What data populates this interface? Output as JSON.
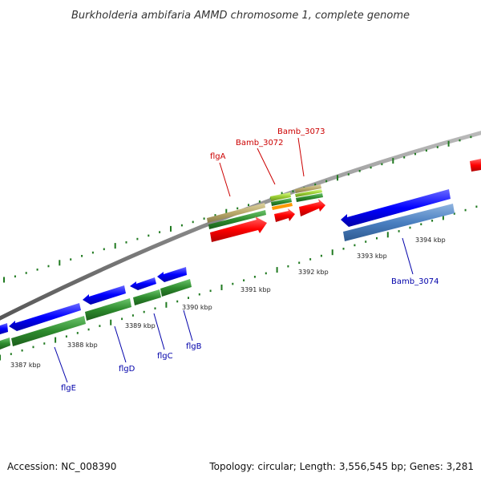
{
  "title": "Burkholderia ambifaria AMMD chromosome 1, complete genome",
  "footer": {
    "accession": "Accession: NC_008390",
    "summary": "Topology: circular; Length: 3,556,545 bp; Genes: 3,281"
  },
  "colors": {
    "backbone": "#888888",
    "tick": "#207a20",
    "forward_label": "#cc0000",
    "reverse_label": "#0000aa",
    "axis_label": "#222222",
    "cds_forward": "#ff0000",
    "cds_reverse": "#0000ff",
    "rrna_like": "#4a7fc1",
    "gene_reverse": "#2e8b2e",
    "gene_forward": "#b8a86a",
    "misc_green": "#99cc33",
    "misc_orange": "#ff9900"
  },
  "axis_labels": [
    "3387 kbp",
    "3388 kbp",
    "3389 kbp",
    "3390 kbp",
    "3391 kbp",
    "3392 kbp",
    "3393 kbp",
    "3394 kbp"
  ],
  "gene_labels": {
    "forward": [
      "flgA",
      "Bamb_3072",
      "Bamb_3073"
    ],
    "reverse": [
      "flgE",
      "flgD",
      "flgC",
      "flgB",
      "Bamb_3074"
    ]
  }
}
